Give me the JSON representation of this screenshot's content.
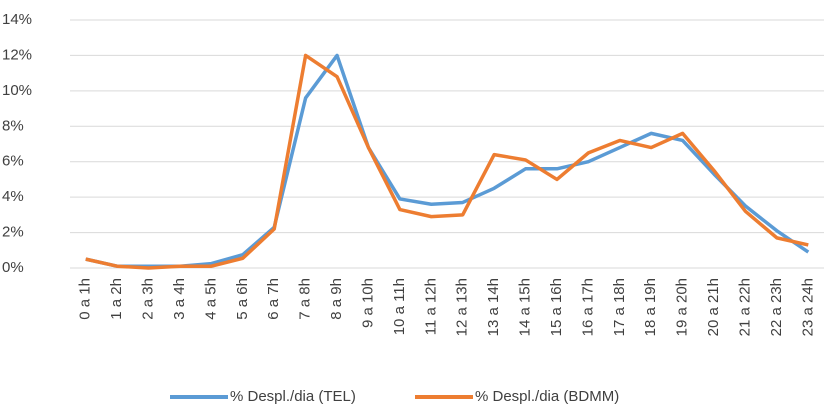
{
  "chart_data": {
    "type": "line",
    "categories": [
      "0 a 1h",
      "1 a 2h",
      "2 a 3h",
      "3 a 4h",
      "4 a 5h",
      "5 a 6h",
      "6 a 7h",
      "7 a 8h",
      "8 a 9h",
      "9 a 10h",
      "10 a 11h",
      "11 a 12h",
      "12 a 13h",
      "13 a 14h",
      "14 a 15h",
      "15 a 16h",
      "16 a 17h",
      "17 a 18h",
      "18 a 19h",
      "19 a 20h",
      "20 a 21h",
      "21 a 22h",
      "22 a 23h",
      "23 a 24h"
    ],
    "series": [
      {
        "name": "% Despl./dia (TEL)",
        "color": "#5b9bd5",
        "values": [
          0.5,
          0.1,
          0.1,
          0.1,
          0.25,
          0.75,
          2.3,
          9.6,
          12.0,
          6.8,
          3.9,
          3.6,
          3.7,
          4.5,
          5.6,
          5.6,
          6.0,
          6.8,
          7.6,
          7.2,
          5.3,
          3.5,
          2.1,
          0.9
        ]
      },
      {
        "name": "% Despl./dia (BDMM)",
        "color": "#ed7d31",
        "values": [
          0.5,
          0.1,
          0.0,
          0.1,
          0.1,
          0.55,
          2.2,
          12.0,
          10.8,
          6.8,
          3.3,
          2.9,
          3.0,
          6.4,
          6.1,
          5.0,
          6.5,
          7.2,
          6.8,
          7.6,
          5.5,
          3.2,
          1.7,
          1.3
        ]
      }
    ],
    "ylim": [
      0,
      14
    ],
    "yticks": [
      {
        "value": 0,
        "label": "0%"
      },
      {
        "value": 2,
        "label": "2%"
      },
      {
        "value": 4,
        "label": "4%"
      },
      {
        "value": 6,
        "label": "6%"
      },
      {
        "value": 8,
        "label": "8%"
      },
      {
        "value": 10,
        "label": "10%"
      },
      {
        "value": 12,
        "label": "12%"
      },
      {
        "value": 14,
        "label": "14%"
      }
    ],
    "grid": true,
    "legend": "bottom"
  }
}
